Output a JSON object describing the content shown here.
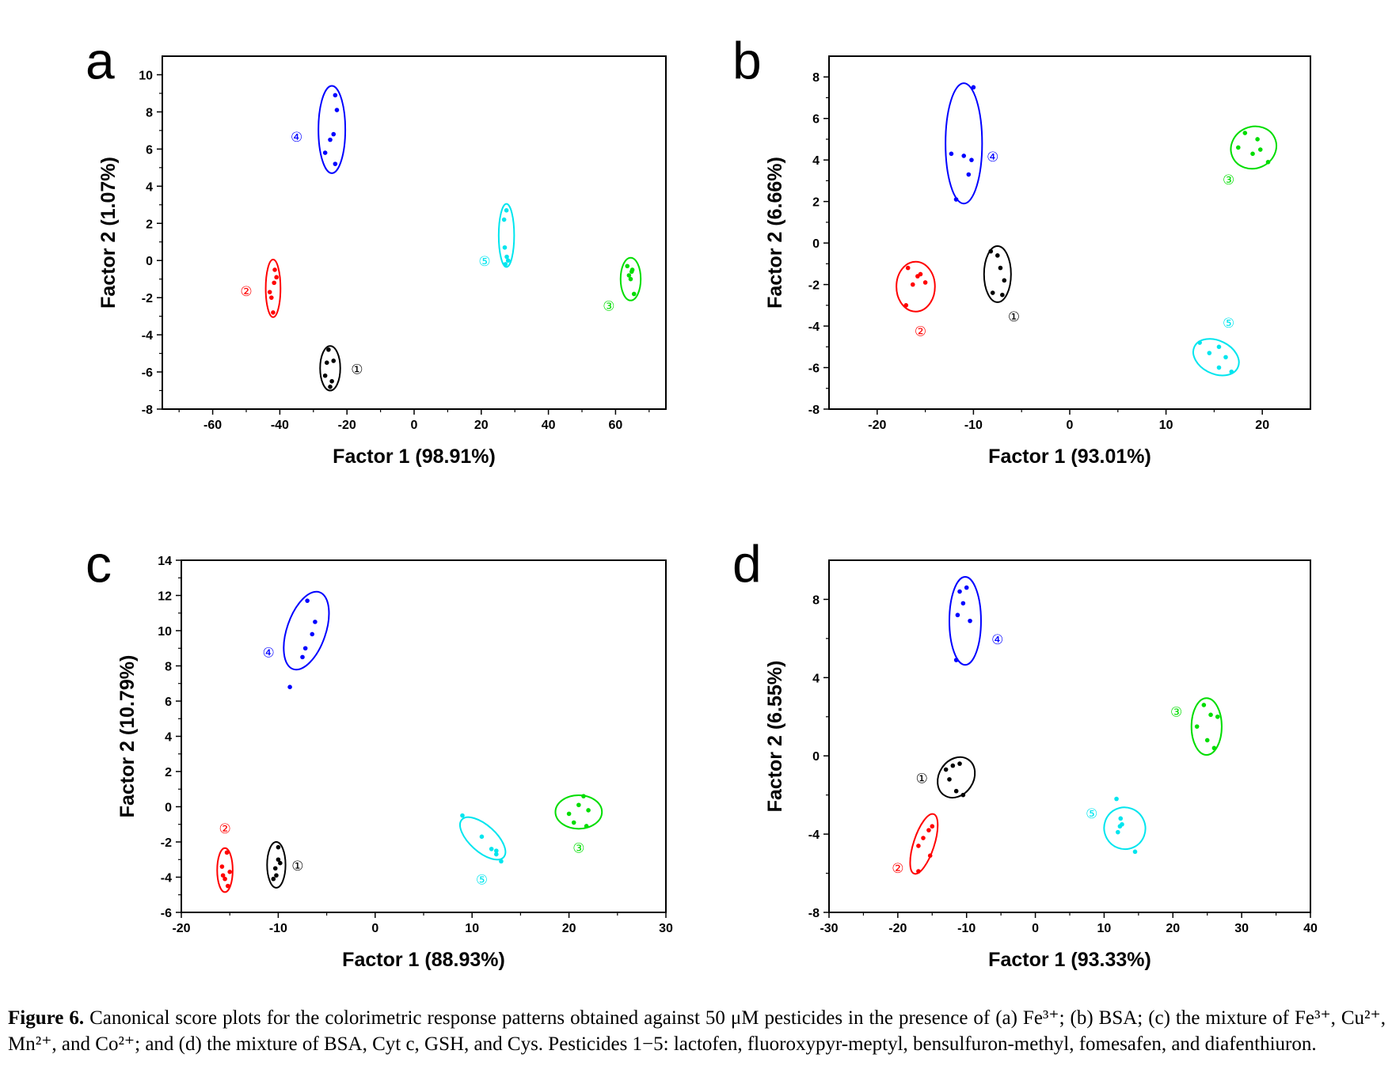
{
  "colors": {
    "1": "#000000",
    "2": "#ff0000",
    "3": "#00dd00",
    "4": "#0000ff",
    "5": "#00e5ee"
  },
  "chart_data": [
    {
      "type": "scatter",
      "panel": "a",
      "xlabel": "Factor 1 (98.91%)",
      "ylabel": "Factor 2 (1.07%)",
      "xlim": [
        -75,
        75
      ],
      "ylim": [
        -8,
        11
      ],
      "xticks": [
        -60,
        -40,
        -20,
        0,
        20,
        40,
        60
      ],
      "yticks": [
        -8,
        -6,
        -4,
        -2,
        0,
        2,
        4,
        6,
        8,
        10
      ],
      "groups": [
        {
          "id": "1",
          "label": "①",
          "points": [
            [
              -25.5,
              -4.8
            ],
            [
              -26,
              -5.5
            ],
            [
              -24,
              -5.4
            ],
            [
              -24.5,
              -6.5
            ],
            [
              -25,
              -6.8
            ],
            [
              -26.5,
              -6.2
            ]
          ],
          "ellipse": {
            "cx": -25,
            "cy": -5.8,
            "rx": 3.0,
            "ry": 1.2,
            "rot": 0
          },
          "label_at": [
            -17,
            -5.8
          ]
        },
        {
          "id": "2",
          "label": "②",
          "points": [
            [
              -41.5,
              -0.5
            ],
            [
              -41,
              -0.9
            ],
            [
              -43,
              -1.7
            ],
            [
              -42.5,
              -2.0
            ],
            [
              -42,
              -2.8
            ],
            [
              -41.7,
              -1.2
            ]
          ],
          "ellipse": {
            "cx": -42,
            "cy": -1.5,
            "rx": 2.2,
            "ry": 1.55,
            "rot": 0
          },
          "label_at": [
            -50,
            -1.6
          ]
        },
        {
          "id": "3",
          "label": "③",
          "points": [
            [
              63.5,
              -0.3
            ],
            [
              64,
              -0.8
            ],
            [
              64.5,
              -1.0
            ],
            [
              65,
              -0.5
            ],
            [
              65.5,
              -1.8
            ],
            [
              64.8,
              -0.6
            ]
          ],
          "ellipse": {
            "cx": 64.5,
            "cy": -1.0,
            "rx": 3.0,
            "ry": 1.15,
            "rot": 0
          },
          "label_at": [
            58,
            -2.4
          ]
        },
        {
          "id": "4",
          "label": "④",
          "points": [
            [
              -23.5,
              8.9
            ],
            [
              -23,
              8.1
            ],
            [
              -24,
              6.8
            ],
            [
              -25,
              6.5
            ],
            [
              -26.5,
              5.8
            ],
            [
              -23.5,
              5.2
            ]
          ],
          "ellipse": {
            "cx": -24.5,
            "cy": 7.05,
            "rx": 4.0,
            "ry": 2.35,
            "rot": 0
          },
          "label_at": [
            -35,
            6.7
          ]
        },
        {
          "id": "5",
          "label": "⑤",
          "points": [
            [
              27.5,
              2.7
            ],
            [
              26.8,
              2.2
            ],
            [
              27.0,
              0.7
            ],
            [
              27.6,
              0.2
            ],
            [
              28.0,
              0.0
            ],
            [
              27.2,
              -0.2
            ]
          ],
          "ellipse": {
            "cx": 27.5,
            "cy": 1.35,
            "rx": 2.3,
            "ry": 1.7,
            "rot": 0
          },
          "label_at": [
            21,
            0.0
          ]
        }
      ]
    },
    {
      "type": "scatter",
      "panel": "b",
      "xlabel": "Factor 1 (93.01%)",
      "ylabel": "Factor 2 (6.66%)",
      "xlim": [
        -25,
        25
      ],
      "ylim": [
        -8,
        9
      ],
      "xticks": [
        -20,
        -10,
        0,
        10,
        20
      ],
      "yticks": [
        -8,
        -6,
        -4,
        -2,
        0,
        2,
        4,
        6,
        8
      ],
      "groups": [
        {
          "id": "1",
          "label": "①",
          "points": [
            [
              -8.2,
              -0.4
            ],
            [
              -7.5,
              -0.6
            ],
            [
              -7.2,
              -1.2
            ],
            [
              -6.8,
              -1.8
            ],
            [
              -8.0,
              -2.4
            ],
            [
              -7.0,
              -2.5
            ]
          ],
          "ellipse": {
            "cx": -7.5,
            "cy": -1.5,
            "rx": 1.4,
            "ry": 1.35,
            "rot": 0
          },
          "label_at": [
            -5.8,
            -3.5
          ]
        },
        {
          "id": "2",
          "label": "②",
          "points": [
            [
              -16.8,
              -1.2
            ],
            [
              -15.5,
              -1.5
            ],
            [
              -15.0,
              -1.9
            ],
            [
              -16.3,
              -2.0
            ],
            [
              -17.0,
              -3.0
            ],
            [
              -15.8,
              -1.6
            ]
          ],
          "ellipse": {
            "cx": -16,
            "cy": -2.1,
            "rx": 2.0,
            "ry": 1.2,
            "rot": 0
          },
          "label_at": [
            -15.5,
            -4.2
          ]
        },
        {
          "id": "3",
          "label": "③",
          "points": [
            [
              17.5,
              4.6
            ],
            [
              18.2,
              5.3
            ],
            [
              19.0,
              4.3
            ],
            [
              19.8,
              4.5
            ],
            [
              20.6,
              3.9
            ],
            [
              19.5,
              5.0
            ]
          ],
          "ellipse": {
            "cx": 19.1,
            "cy": 4.6,
            "rx": 2.4,
            "ry": 1.0,
            "rot": -24
          },
          "label_at": [
            16.5,
            3.1
          ]
        },
        {
          "id": "4",
          "label": "④",
          "points": [
            [
              -10,
              7.5
            ],
            [
              -11,
              4.2
            ],
            [
              -12.3,
              4.3
            ],
            [
              -10.2,
              4.0
            ],
            [
              -10.5,
              3.3
            ],
            [
              -11.8,
              2.1
            ]
          ],
          "ellipse": {
            "cx": -11,
            "cy": 4.8,
            "rx": 1.9,
            "ry": 2.9,
            "rot": 0
          },
          "label_at": [
            -8.0,
            4.2
          ]
        },
        {
          "id": "5",
          "label": "⑤",
          "points": [
            [
              13.5,
              -4.8
            ],
            [
              14.5,
              -5.3
            ],
            [
              15.5,
              -5.0
            ],
            [
              16.2,
              -5.5
            ],
            [
              15.5,
              -6.0
            ],
            [
              16.8,
              -6.2
            ]
          ],
          "ellipse": {
            "cx": 15.2,
            "cy": -5.5,
            "rx": 2.5,
            "ry": 0.8,
            "rot": 26
          },
          "label_at": [
            16.5,
            -3.8
          ]
        }
      ]
    },
    {
      "type": "scatter",
      "panel": "c",
      "xlabel": "Factor 1 (88.93%)",
      "ylabel": "Factor 2 (10.79%)",
      "xlim": [
        -20,
        30
      ],
      "ylim": [
        -6,
        14
      ],
      "xticks": [
        -20,
        -10,
        0,
        10,
        20,
        30
      ],
      "yticks": [
        -6,
        -4,
        -2,
        0,
        2,
        4,
        6,
        8,
        10,
        12,
        14
      ],
      "groups": [
        {
          "id": "1",
          "label": "①",
          "points": [
            [
              -10.0,
              -2.3
            ],
            [
              -9.8,
              -3.2
            ],
            [
              -10.3,
              -3.5
            ],
            [
              -10.2,
              -3.9
            ],
            [
              -10.5,
              -4.1
            ],
            [
              -10.0,
              -3.0
            ]
          ],
          "ellipse": {
            "cx": -10.2,
            "cy": -3.3,
            "rx": 0.95,
            "ry": 1.3,
            "rot": 0
          },
          "label_at": [
            -8.0,
            -3.3
          ]
        },
        {
          "id": "2",
          "label": "②",
          "points": [
            [
              -15.3,
              -2.6
            ],
            [
              -15.8,
              -3.4
            ],
            [
              -15.0,
              -3.7
            ],
            [
              -15.5,
              -4.1
            ],
            [
              -15.2,
              -4.5
            ],
            [
              -15.7,
              -3.9
            ]
          ],
          "ellipse": {
            "cx": -15.5,
            "cy": -3.6,
            "rx": 0.8,
            "ry": 1.25,
            "rot": 0
          },
          "label_at": [
            -15.5,
            -1.2
          ]
        },
        {
          "id": "3",
          "label": "③",
          "points": [
            [
              21.5,
              0.6
            ],
            [
              21.0,
              0.1
            ],
            [
              20.0,
              -0.4
            ],
            [
              22.0,
              -0.2
            ],
            [
              21.8,
              -1.1
            ],
            [
              20.5,
              -0.9
            ]
          ],
          "ellipse": {
            "cx": 21,
            "cy": -0.3,
            "rx": 2.4,
            "ry": 0.95,
            "rot": 0
          },
          "label_at": [
            21,
            -2.3
          ]
        },
        {
          "id": "4",
          "label": "④",
          "points": [
            [
              -7.0,
              11.7
            ],
            [
              -6.2,
              10.5
            ],
            [
              -6.5,
              9.8
            ],
            [
              -7.2,
              9.0
            ],
            [
              -7.5,
              8.5
            ],
            [
              -8.8,
              6.8
            ]
          ],
          "ellipse": {
            "cx": -7.1,
            "cy": 10.0,
            "rx": 4.2,
            "ry": 1.1,
            "rot": -71
          },
          "label_at": [
            -11,
            8.8
          ]
        },
        {
          "id": "5",
          "label": "⑤",
          "points": [
            [
              9.0,
              -0.5
            ],
            [
              11.0,
              -1.7
            ],
            [
              12.0,
              -2.4
            ],
            [
              12.5,
              -2.7
            ],
            [
              13.0,
              -3.1
            ],
            [
              12.5,
              -2.5
            ]
          ],
          "ellipse": {
            "cx": 11.1,
            "cy": -1.8,
            "rx": 2.9,
            "ry": 0.75,
            "rot": 42
          },
          "label_at": [
            11,
            -4.1
          ]
        }
      ]
    },
    {
      "type": "scatter",
      "panel": "d",
      "xlabel": "Factor 1 (93.33%)",
      "ylabel": "Factor 2 (6.55%)",
      "xlim": [
        -30,
        40
      ],
      "ylim": [
        -8,
        10
      ],
      "xticks": [
        -30,
        -20,
        -10,
        0,
        10,
        20,
        30,
        40
      ],
      "yticks": [
        -8,
        -4,
        0,
        4,
        8
      ],
      "groups": [
        {
          "id": "1",
          "label": "①",
          "points": [
            [
              -13.0,
              -0.7
            ],
            [
              -12.0,
              -0.5
            ],
            [
              -11.0,
              -0.4
            ],
            [
              -12.5,
              -1.2
            ],
            [
              -11.5,
              -1.8
            ],
            [
              -10.5,
              -2.0
            ]
          ],
          "ellipse": {
            "cx": -11.5,
            "cy": -1.1,
            "rx": 2.5,
            "ry": 1.1,
            "rot": 34
          },
          "label_at": [
            -16.5,
            -1.1
          ]
        },
        {
          "id": "2",
          "label": "②",
          "points": [
            [
              -15.0,
              -3.6
            ],
            [
              -15.5,
              -3.8
            ],
            [
              -16.3,
              -4.2
            ],
            [
              -17.0,
              -4.6
            ],
            [
              -15.3,
              -5.1
            ],
            [
              -17.0,
              -5.9
            ]
          ],
          "ellipse": {
            "cx": -16.2,
            "cy": -4.5,
            "rx": 1.5,
            "ry": 1.6,
            "rot": 18
          },
          "label_at": [
            -20,
            -5.7
          ]
        },
        {
          "id": "3",
          "label": "③",
          "points": [
            [
              24.5,
              2.6
            ],
            [
              25.5,
              2.1
            ],
            [
              26.5,
              2.0
            ],
            [
              23.5,
              1.5
            ],
            [
              25.0,
              0.8
            ],
            [
              26.0,
              0.4
            ]
          ],
          "ellipse": {
            "cx": 24.9,
            "cy": 1.5,
            "rx": 2.2,
            "ry": 1.45,
            "rot": 0
          },
          "label_at": [
            20.5,
            2.3
          ]
        },
        {
          "id": "4",
          "label": "④",
          "points": [
            [
              -11.0,
              8.4
            ],
            [
              -10.0,
              8.6
            ],
            [
              -10.5,
              7.8
            ],
            [
              -11.3,
              7.2
            ],
            [
              -9.5,
              6.9
            ],
            [
              -11.5,
              4.9
            ]
          ],
          "ellipse": {
            "cx": -10.2,
            "cy": 6.9,
            "rx": 2.3,
            "ry": 2.25,
            "rot": 0
          },
          "label_at": [
            -5.5,
            6.0
          ]
        },
        {
          "id": "5",
          "label": "⑤",
          "points": [
            [
              11.8,
              -2.2
            ],
            [
              12.4,
              -3.2
            ],
            [
              12.3,
              -3.6
            ],
            [
              12.0,
              -3.9
            ],
            [
              12.6,
              -3.5
            ],
            [
              14.5,
              -4.9
            ]
          ],
          "ellipse": {
            "cx": 13.0,
            "cy": -3.7,
            "rx": 3.05,
            "ry": 1.05,
            "rot": 65
          },
          "label_at": [
            8.2,
            -2.9
          ]
        }
      ]
    }
  ],
  "caption": {
    "label": "Figure 6.",
    "text": "Canonical score plots for the colorimetric response patterns obtained against 50 μM pesticides in the presence of (a) Fe³⁺; (b) BSA; (c) the mixture of Fe³⁺, Cu²⁺, Mn²⁺, and Co²⁺; and (d) the mixture of BSA, Cyt c, GSH, and Cys. Pesticides 1−5: lactofen, fluoroxypyr-meptyl, bensulfuron-methyl, fomesafen, and diafenthiuron."
  }
}
